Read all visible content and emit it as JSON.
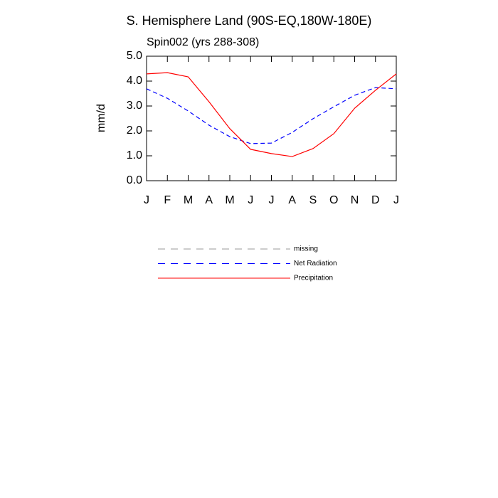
{
  "chart_data": {
    "type": "line",
    "title": "S. Hemisphere Land (90S-EQ,180W-180E)",
    "subtitle": "Spin002 (yrs 288-308)",
    "y_label": "mm/d",
    "categories": [
      "J",
      "F",
      "M",
      "A",
      "M",
      "J",
      "J",
      "A",
      "S",
      "O",
      "N",
      "D",
      "J"
    ],
    "series": [
      {
        "name": "missing",
        "color": "#999999",
        "dash": true,
        "values": [
          null,
          null,
          null,
          null,
          null,
          null,
          null,
          null,
          null,
          null,
          null,
          null,
          null
        ]
      },
      {
        "name": "Net Radiation",
        "color": "#0000ff",
        "dash": true,
        "values": [
          3.69,
          3.31,
          2.8,
          2.23,
          1.77,
          1.49,
          1.51,
          1.94,
          2.49,
          2.97,
          3.43,
          3.74,
          3.69
        ]
      },
      {
        "name": "Precipitation",
        "color": "#ff0000",
        "dash": false,
        "values": [
          4.29,
          4.34,
          4.17,
          3.17,
          2.09,
          1.26,
          1.09,
          0.97,
          1.29,
          1.89,
          2.91,
          3.63,
          4.29
        ]
      }
    ],
    "ylim": [
      0,
      5
    ],
    "yticks": [
      {
        "value": 0,
        "label": "0.0"
      },
      {
        "value": 1,
        "label": "1.0"
      },
      {
        "value": 2,
        "label": "2.0"
      },
      {
        "value": 3,
        "label": "3.0"
      },
      {
        "value": 4,
        "label": "4.0"
      },
      {
        "value": 5,
        "label": "5.0"
      }
    ],
    "grid": false,
    "legend": "below"
  }
}
